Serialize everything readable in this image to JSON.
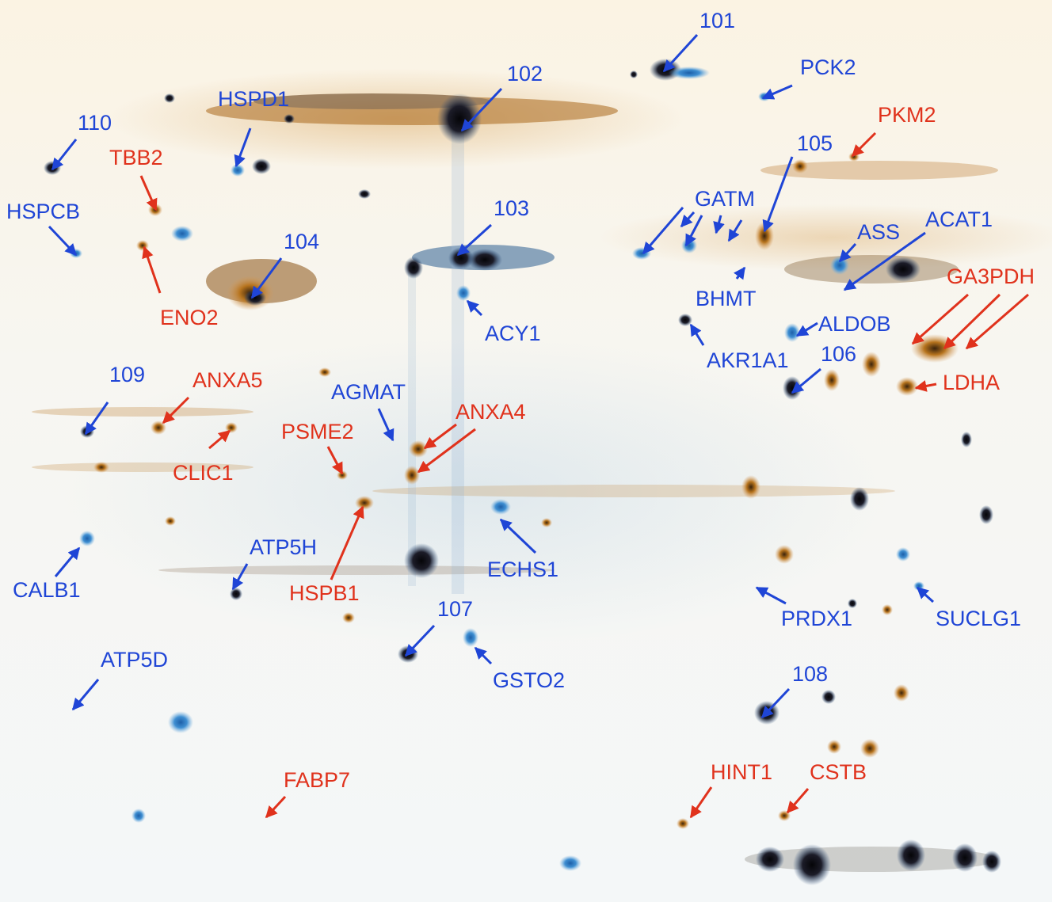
{
  "colors": {
    "blue_label": "#1f45d6",
    "red_label": "#e0321c",
    "spot_dark": "#0d0d12",
    "spot_orange": "#b7741e",
    "spot_blue": "#3f8fd2"
  },
  "labels": {
    "n101": "101",
    "n102": "102",
    "n103": "103",
    "n104": "104",
    "n105": "105",
    "n106": "106",
    "n107": "107",
    "n108": "108",
    "n109": "109",
    "n110": "110",
    "pck2": "PCK2",
    "pkm2": "PKM2",
    "hspd1": "HSPD1",
    "tbb2": "TBB2",
    "hspcb": "HSPCB",
    "eno2": "ENO2",
    "gatm": "GATM",
    "ass": "ASS",
    "acat1": "ACAT1",
    "bhmt": "BHMT",
    "ga3pdh": "GA3PDH",
    "acy1": "ACY1",
    "aldob": "ALDOB",
    "akr1a1": "AKR1A1",
    "ldha": "LDHA",
    "anxa5": "ANXA5",
    "agmat": "AGMAT",
    "anxa4": "ANXA4",
    "psme2": "PSME2",
    "clic1": "CLIC1",
    "atp5h": "ATP5H",
    "calb1": "CALB1",
    "hspb1": "HSPB1",
    "echs1": "ECHS1",
    "prdx1": "PRDX1",
    "suclg1": "SUCLG1",
    "gsto2": "GSTO2",
    "atp5d": "ATP5D",
    "fabp7": "FABP7",
    "hint1": "HINT1",
    "cstb": "CSTB"
  }
}
